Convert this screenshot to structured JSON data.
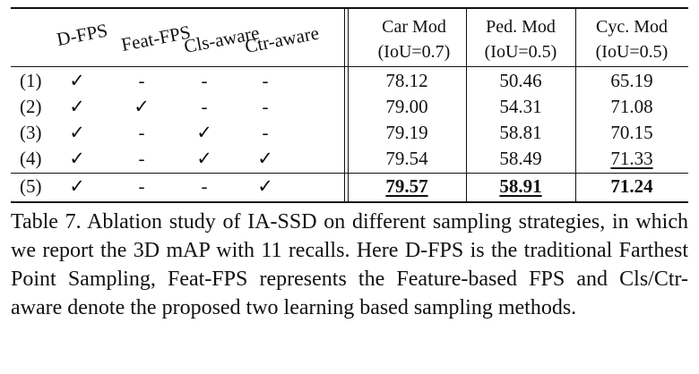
{
  "table": {
    "method_headers": [
      "D-FPS",
      "Feat-FPS",
      "Cls-aware",
      "Ctr-aware"
    ],
    "metric_headers": [
      {
        "title": "Car Mod",
        "sub": "(IoU=0.7)"
      },
      {
        "title": "Ped. Mod",
        "sub": "(IoU=0.5)"
      },
      {
        "title": "Cyc. Mod",
        "sub": "(IoU=0.5)"
      }
    ],
    "rows": [
      {
        "label": "(1)",
        "marks": [
          "✓",
          "-",
          "-",
          "-"
        ],
        "values": [
          "78.12",
          "50.46",
          "65.19"
        ]
      },
      {
        "label": "(2)",
        "marks": [
          "✓",
          "✓",
          "-",
          "-"
        ],
        "values": [
          "79.00",
          "54.31",
          "71.08"
        ]
      },
      {
        "label": "(3)",
        "marks": [
          "✓",
          "-",
          "✓",
          "-"
        ],
        "values": [
          "79.19",
          "58.81",
          "70.15"
        ]
      },
      {
        "label": "(4)",
        "marks": [
          "✓",
          "-",
          "✓",
          "✓"
        ],
        "values": [
          "79.54",
          "58.49",
          "71.33"
        ]
      },
      {
        "label": "(5)",
        "marks": [
          "✓",
          "-",
          "-",
          "✓"
        ],
        "values": [
          "79.57",
          "58.91",
          "71.24"
        ]
      }
    ]
  },
  "caption": "Table 7. Ablation study of IA-SSD on different sampling strategies, in which we report the 3D mAP with 11 recalls. Here D-FPS is the traditional Farthest Point Sampling, Feat-FPS represents the Feature-based FPS and Cls/Ctr-aware denote the proposed two learning based sampling methods."
}
